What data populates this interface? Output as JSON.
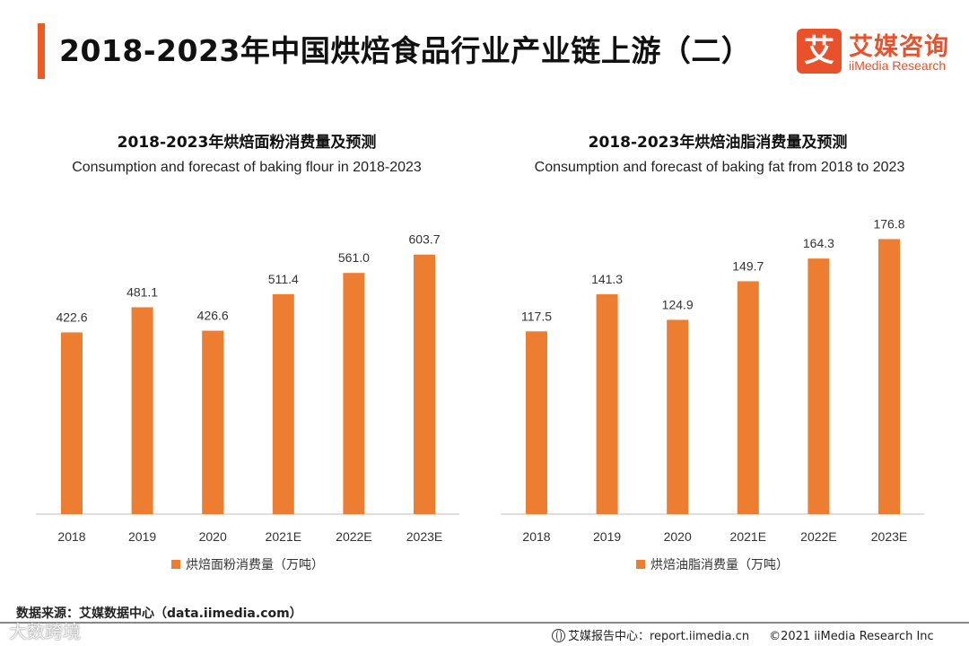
{
  "header": {
    "title": "2018-2023年中国烘焙食品行业产业链上游（二）",
    "logo_char": "艾",
    "logo_cn": "艾媒咨询",
    "logo_en": "iiMedia Research"
  },
  "colors": {
    "accent": "#ee5a24",
    "bar": "#ed7d31",
    "axis": "#bfbfbf"
  },
  "chart_data": [
    {
      "type": "bar",
      "title": "2018-2023年烘焙面粉消费量及预测",
      "subtitle": "Consumption and forecast of baking flour in 2018-2023",
      "categories": [
        "2018",
        "2019",
        "2020",
        "2021E",
        "2022E",
        "2023E"
      ],
      "values": [
        422.6,
        481.1,
        426.6,
        511.4,
        561.0,
        603.7
      ],
      "value_labels": [
        "422.6",
        "481.1",
        "426.6",
        "511.4",
        "561.0",
        "603.7"
      ],
      "legend": "烘焙面粉消费量（万吨）",
      "ylim": [
        0,
        720
      ]
    },
    {
      "type": "bar",
      "title": "2018-2023年烘焙油脂消费量及预测",
      "subtitle": "Consumption and forecast of baking fat from 2018 to 2023",
      "categories": [
        "2018",
        "2019",
        "2020",
        "2021E",
        "2022E",
        "2023E"
      ],
      "values": [
        117.5,
        141.3,
        124.9,
        149.7,
        164.3,
        176.8
      ],
      "value_labels": [
        "117.5",
        "141.3",
        "124.9",
        "149.7",
        "164.3",
        "176.8"
      ],
      "legend": "烘焙油脂消费量（万吨）",
      "ylim": [
        0,
        199
      ]
    }
  ],
  "footer": {
    "source": "数据来源：艾媒数据中心（data.iimedia.com）",
    "report_center": "艾媒报告中心：report.iimedia.cn",
    "copyright": "©2021  iiMedia Research  Inc"
  },
  "watermark": "大数跨境"
}
